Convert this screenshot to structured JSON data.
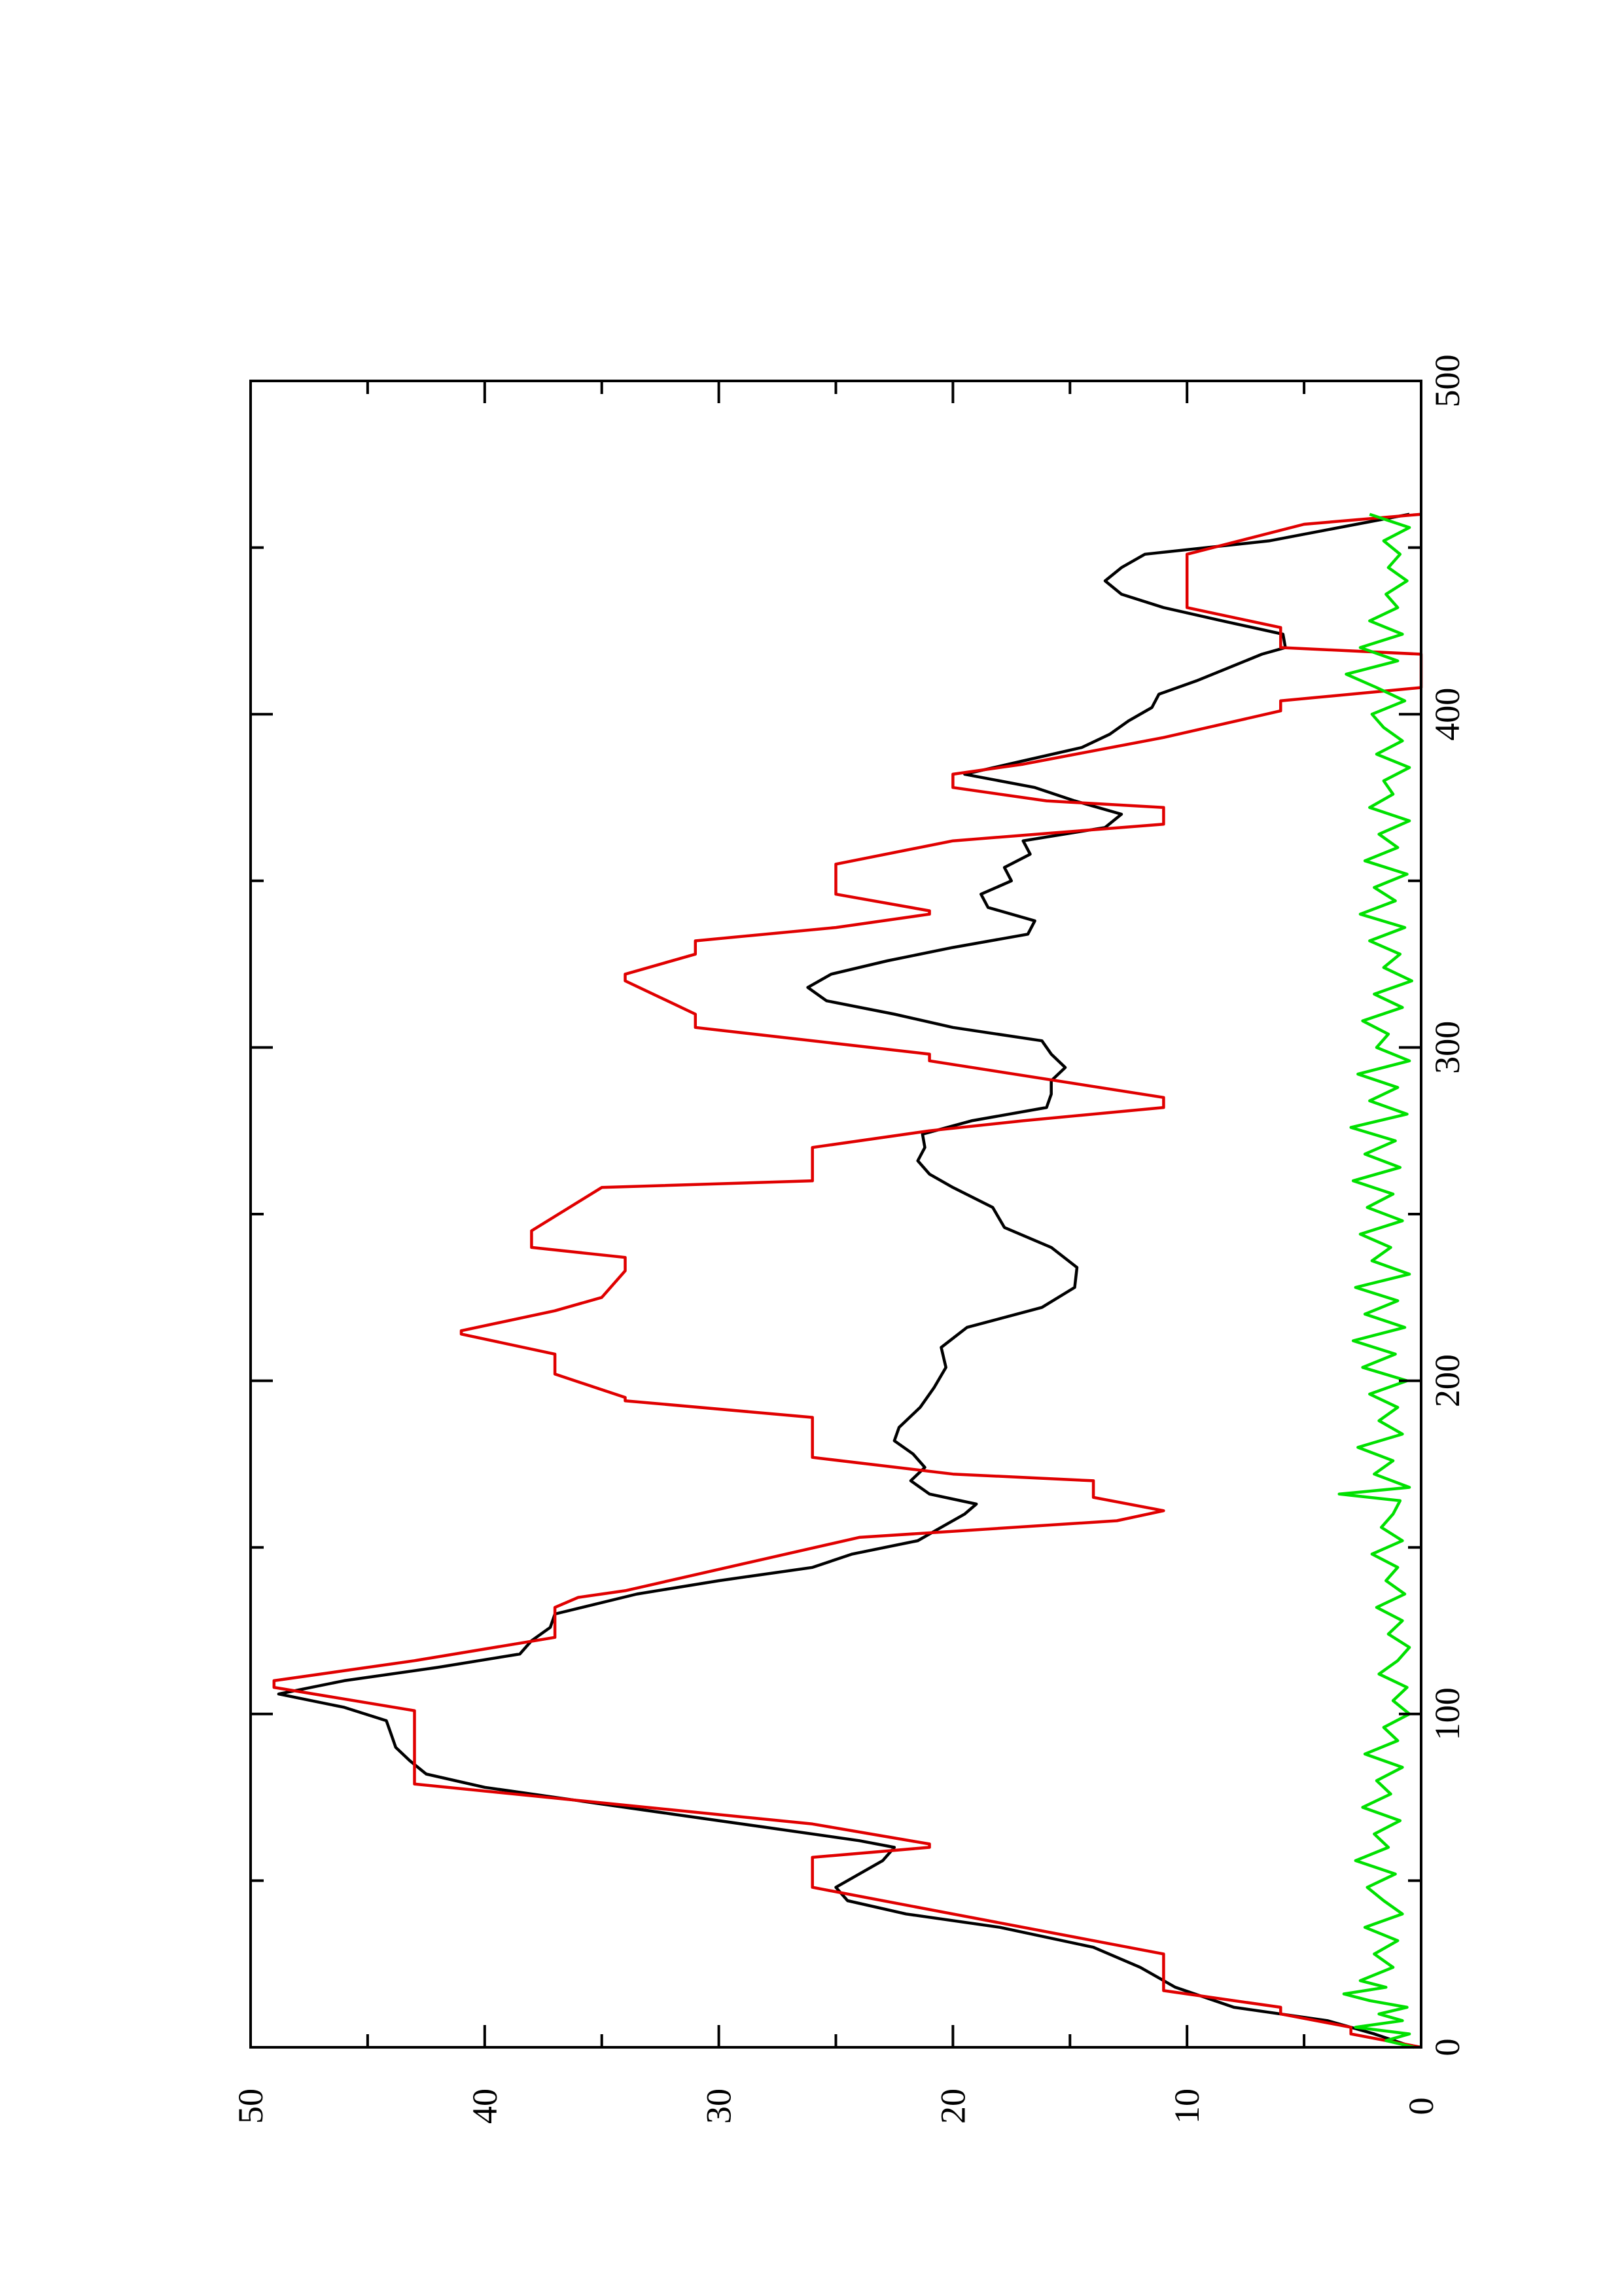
{
  "chart_data": {
    "type": "line",
    "title": "",
    "xlabel": "",
    "ylabel": "",
    "xlim": [
      0,
      500
    ],
    "ylim": [
      0,
      50
    ],
    "x_ticks": [
      "0",
      "100",
      "200",
      "300",
      "400",
      "500"
    ],
    "y_ticks": [
      "0",
      "10",
      "20",
      "30",
      "40",
      "50"
    ],
    "orientation": "page rotated 90 degrees counter-clockwise",
    "grid": false,
    "legend": "none",
    "series": [
      {
        "color": "#000000",
        "x": [
          0,
          4,
          8,
          12,
          18,
          24,
          30,
          36,
          40,
          44,
          48,
          52,
          56,
          60,
          62,
          66,
          70,
          74,
          78,
          82,
          86,
          90,
          94,
          98,
          102,
          106,
          110,
          114,
          118,
          122,
          126,
          130,
          136,
          140,
          144,
          148,
          152,
          156,
          160,
          163,
          166,
          170,
          174,
          178,
          182,
          186,
          192,
          198,
          204,
          210,
          216,
          222,
          228,
          234,
          240,
          246,
          252,
          258,
          262,
          266,
          270,
          274,
          278,
          282,
          286,
          290,
          294,
          298,
          302,
          306,
          310,
          314,
          318,
          322,
          326,
          330,
          334,
          338,
          342,
          346,
          350,
          354,
          358,
          362,
          366,
          370,
          374,
          378,
          382,
          386,
          390,
          394,
          398,
          402,
          406,
          410,
          414,
          418,
          420,
          424,
          428,
          432,
          436,
          440,
          444,
          448,
          452,
          456,
          460
        ],
        "y": [
          0.3,
          2,
          4,
          8,
          10.5,
          12,
          14,
          18,
          22,
          24.5,
          25,
          24,
          23,
          22.5,
          24,
          28,
          32,
          36,
          40,
          42.5,
          43.2,
          43.8,
          44,
          44.2,
          46,
          48.8,
          46,
          42,
          38.5,
          38,
          37.2,
          37,
          33.5,
          30,
          26,
          24.3,
          21.5,
          20.5,
          19.5,
          19,
          21,
          21.8,
          21.2,
          21.7,
          22.5,
          22.3,
          21.4,
          20.8,
          20.3,
          20.5,
          19.4,
          16.2,
          14.8,
          14.7,
          15.8,
          17.8,
          18.3,
          20,
          21,
          21.5,
          21.2,
          21.3,
          19.2,
          16,
          15.8,
          15.8,
          15.2,
          15.8,
          16.2,
          20,
          22.5,
          25.4,
          26.2,
          25.2,
          22.8,
          20,
          16.8,
          16.5,
          18.5,
          18.8,
          17.5,
          17.8,
          16.7,
          17,
          13.5,
          12.8,
          14.8,
          16.5,
          19.5,
          17,
          14.5,
          13.3,
          12.5,
          11.5,
          11.2,
          9.6,
          8.2,
          6.8,
          5.8,
          5.9,
          8.5,
          11,
          12.8,
          13.5,
          12.8,
          11.8,
          6.5,
          3.5,
          0.5
        ]
      },
      {
        "color": "#e00000",
        "x": [
          0,
          4,
          6,
          10,
          12,
          17,
          18,
          27,
          28,
          48,
          49,
          56,
          57,
          60,
          61,
          67,
          79,
          80,
          94,
          100,
          101,
          108,
          110,
          116,
          123,
          124,
          132,
          135,
          137,
          153,
          158,
          161,
          165,
          170,
          172,
          177,
          180,
          189,
          194,
          195,
          202,
          208,
          214,
          215,
          221,
          225,
          233,
          237,
          240,
          245,
          258,
          260,
          268,
          270,
          275,
          278,
          282,
          285,
          296,
          298,
          306,
          310,
          320,
          322,
          328,
          332,
          336,
          340,
          341,
          346,
          348,
          355,
          362,
          367,
          372,
          374,
          378,
          382,
          385,
          393,
          401,
          404,
          408,
          416,
          418,
          420,
          426,
          432,
          434,
          440,
          441,
          446,
          448,
          457,
          460
        ],
        "y": [
          0,
          3,
          3,
          6,
          6,
          11,
          11,
          11,
          11,
          26,
          26,
          26,
          26,
          21,
          21,
          26,
          43,
          43,
          43,
          43,
          43,
          49,
          49,
          43,
          37,
          37,
          37,
          36,
          34,
          24,
          13,
          11,
          14,
          14,
          20,
          26,
          26,
          26,
          34,
          34,
          37,
          37,
          41,
          41,
          37,
          35,
          34,
          34,
          38,
          38,
          35,
          26,
          26,
          26,
          21,
          17,
          11,
          11,
          21,
          21,
          31,
          31,
          34,
          34,
          31,
          31,
          25,
          21,
          21,
          25,
          25,
          25,
          20,
          11,
          11,
          16,
          20,
          20,
          17,
          11,
          6,
          6,
          0,
          0,
          0,
          6,
          6,
          10,
          10,
          10,
          10,
          10,
          10,
          5,
          0
        ]
      },
      {
        "color": "#00e000",
        "x": [
          0,
          2,
          4,
          6,
          8,
          10,
          12,
          14,
          16,
          18,
          20,
          24,
          28,
          32,
          36,
          40,
          44,
          48,
          52,
          56,
          60,
          64,
          68,
          72,
          76,
          80,
          84,
          88,
          92,
          96,
          100,
          104,
          108,
          112,
          116,
          120,
          124,
          128,
          132,
          136,
          140,
          144,
          148,
          152,
          156,
          160,
          164,
          166,
          168,
          172,
          176,
          180,
          184,
          188,
          192,
          196,
          200,
          204,
          208,
          212,
          216,
          220,
          224,
          228,
          232,
          236,
          240,
          244,
          248,
          252,
          256,
          260,
          264,
          268,
          272,
          276,
          280,
          284,
          288,
          292,
          296,
          300,
          304,
          308,
          312,
          316,
          320,
          324,
          328,
          332,
          336,
          340,
          344,
          348,
          352,
          356,
          360,
          364,
          368,
          372,
          376,
          380,
          384,
          388,
          392,
          396,
          400,
          404,
          408,
          412,
          416,
          420,
          424,
          428,
          432,
          436,
          440,
          444,
          448,
          452,
          456,
          460
        ],
        "y": [
          0.3,
          1.5,
          0.5,
          2.8,
          0.8,
          1.8,
          0.6,
          2.2,
          3.3,
          1.5,
          2.6,
          1.2,
          2.0,
          1.0,
          2.4,
          0.8,
          1.6,
          2.3,
          1.1,
          2.8,
          1.4,
          2.0,
          0.9,
          2.5,
          1.3,
          1.9,
          0.8,
          2.4,
          1.0,
          1.6,
          0.5,
          1.2,
          0.6,
          1.8,
          1.0,
          0.5,
          1.4,
          0.8,
          1.9,
          0.7,
          1.5,
          1.0,
          2.1,
          0.8,
          1.7,
          1.2,
          0.9,
          3.5,
          0.5,
          2.0,
          1.2,
          2.7,
          0.8,
          1.8,
          1.0,
          2.2,
          0.6,
          2.5,
          1.1,
          2.9,
          0.7,
          2.4,
          1.0,
          2.8,
          0.5,
          2.1,
          1.3,
          2.6,
          0.8,
          2.3,
          1.2,
          2.9,
          0.9,
          2.4,
          1.1,
          3.0,
          0.6,
          2.2,
          1.0,
          2.7,
          0.5,
          1.9,
          1.4,
          2.5,
          0.8,
          2.0,
          0.4,
          1.6,
          0.9,
          2.2,
          0.7,
          2.6,
          1.1,
          2.0,
          0.6,
          2.4,
          1.0,
          1.8,
          0.5,
          2.2,
          1.2,
          1.6,
          0.5,
          1.9,
          0.8,
          1.6,
          2.1,
          0.7,
          1.9,
          3.2,
          1.0,
          2.6,
          0.8,
          2.2,
          1.0,
          1.5,
          0.6,
          1.4,
          0.9,
          1.6,
          0.5,
          2.2
        ]
      }
    ]
  }
}
